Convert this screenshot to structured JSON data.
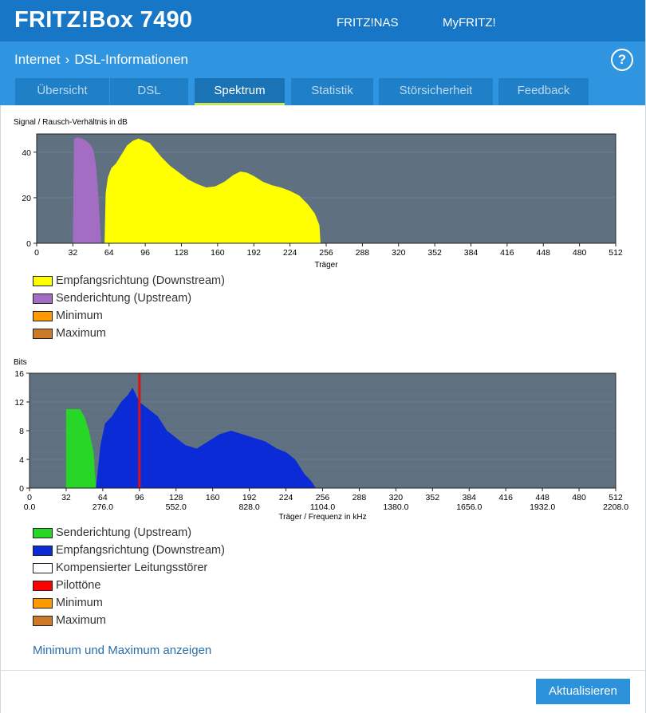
{
  "header": {
    "brand": "FRITZ!Box 7490",
    "nav": [
      "FRITZ!NAS",
      "MyFRITZ!"
    ]
  },
  "breadcrumb": {
    "parent": "Internet",
    "separator": "›",
    "current": "DSL-Informationen"
  },
  "help_label": "?",
  "tabs": [
    "Übersicht",
    "DSL",
    "Spektrum",
    "Statistik",
    "Störsicherheit",
    "Feedback"
  ],
  "active_tab": "Spektrum",
  "chart1": {
    "ylabel": "Signal / Rausch-Verhältnis in dB",
    "xlabel": "Träger"
  },
  "legend1": [
    {
      "label": "Empfangsrichtung (Downstream)",
      "color": "#ffff00"
    },
    {
      "label": "Senderichtung (Upstream)",
      "color": "#a46dc4"
    },
    {
      "label": "Minimum",
      "color": "#ff9900"
    },
    {
      "label": "Maximum",
      "color": "#cc7a29"
    }
  ],
  "chart2": {
    "ylabel": "Bits",
    "xlabel": "Träger / Frequenz in kHz"
  },
  "legend2": [
    {
      "label": "Senderichtung (Upstream)",
      "color": "#27d627"
    },
    {
      "label": "Empfangsrichtung (Downstream)",
      "color": "#0b2bd6"
    },
    {
      "label": "Kompensierter Leitungsstörer",
      "color": "#ffffff"
    },
    {
      "label": "Pilottöne",
      "color": "#ff0000"
    },
    {
      "label": "Minimum",
      "color": "#ff9900"
    },
    {
      "label": "Maximum",
      "color": "#cc7a29"
    }
  ],
  "link_label": "Minimum und Maximum anzeigen",
  "button_label": "Aktualisieren",
  "chart_data": [
    {
      "type": "area",
      "ylabel": "Signal / Rausch-Verhältnis in dB",
      "xlabel": "Träger",
      "xlim": [
        0,
        512
      ],
      "ylim": [
        0,
        48
      ],
      "xticks": [
        0,
        32,
        64,
        96,
        128,
        160,
        192,
        224,
        256,
        288,
        320,
        352,
        384,
        416,
        448,
        480,
        512
      ],
      "yticks": [
        0,
        20,
        40
      ],
      "series": [
        {
          "name": "Senderichtung (Upstream)",
          "color": "#a46dc4",
          "points": [
            [
              32,
              0
            ],
            [
              33,
              46
            ],
            [
              36,
              46.5
            ],
            [
              40,
              46
            ],
            [
              44,
              45
            ],
            [
              48,
              43
            ],
            [
              50,
              41
            ],
            [
              52,
              36
            ],
            [
              54,
              25
            ],
            [
              57,
              0
            ]
          ]
        },
        {
          "name": "Empfangsrichtung (Downstream)",
          "color": "#ffff00",
          "points": [
            [
              60,
              0
            ],
            [
              61,
              22
            ],
            [
              63,
              29
            ],
            [
              66,
              33
            ],
            [
              70,
              35
            ],
            [
              75,
              39
            ],
            [
              80,
              43
            ],
            [
              85,
              45
            ],
            [
              90,
              46
            ],
            [
              95,
              45
            ],
            [
              100,
              44
            ],
            [
              105,
              41
            ],
            [
              110,
              38
            ],
            [
              118,
              34
            ],
            [
              126,
              31
            ],
            [
              134,
              28
            ],
            [
              142,
              26
            ],
            [
              150,
              24.5
            ],
            [
              158,
              25
            ],
            [
              166,
              27
            ],
            [
              174,
              30
            ],
            [
              180,
              31.5
            ],
            [
              186,
              31
            ],
            [
              192,
              29.5
            ],
            [
              200,
              27
            ],
            [
              208,
              25.5
            ],
            [
              216,
              24.5
            ],
            [
              224,
              23
            ],
            [
              232,
              21
            ],
            [
              240,
              17
            ],
            [
              246,
              13
            ],
            [
              250,
              8
            ],
            [
              251,
              0
            ]
          ]
        }
      ]
    },
    {
      "type": "area",
      "ylabel": "Bits",
      "xlabel": "Träger / Frequenz in kHz",
      "xlim": [
        0,
        512
      ],
      "ylim": [
        0,
        16
      ],
      "xticks": [
        0,
        32,
        64,
        96,
        128,
        160,
        192,
        224,
        256,
        288,
        320,
        352,
        384,
        416,
        448,
        480,
        512
      ],
      "freq_ticks": [
        "0.0",
        "276.0",
        "552.0",
        "828.0",
        "1104.0",
        "1380.0",
        "1656.0",
        "1932.0",
        "2208.0"
      ],
      "yticks": [
        0,
        4,
        8,
        12,
        16
      ],
      "series": [
        {
          "name": "Senderichtung (Upstream)",
          "color": "#27d627",
          "points": [
            [
              32,
              0
            ],
            [
              32,
              11
            ],
            [
              44,
              11
            ],
            [
              48,
              10
            ],
            [
              52,
              8
            ],
            [
              56,
              5
            ],
            [
              58,
              0
            ]
          ]
        },
        {
          "name": "Empfangsrichtung (Downstream)",
          "color": "#0b2bd6",
          "points": [
            [
              58,
              0
            ],
            [
              60,
              3
            ],
            [
              62,
              6
            ],
            [
              66,
              9
            ],
            [
              72,
              10
            ],
            [
              80,
              12
            ],
            [
              86,
              13
            ],
            [
              90,
              14
            ],
            [
              96,
              12
            ],
            [
              104,
              11
            ],
            [
              112,
              10
            ],
            [
              120,
              8
            ],
            [
              128,
              7
            ],
            [
              136,
              6
            ],
            [
              146,
              5.5
            ],
            [
              156,
              6.5
            ],
            [
              166,
              7.5
            ],
            [
              176,
              8
            ],
            [
              186,
              7.5
            ],
            [
              196,
              7
            ],
            [
              206,
              6.5
            ],
            [
              216,
              5.5
            ],
            [
              224,
              5
            ],
            [
              232,
              4
            ],
            [
              240,
              2
            ],
            [
              246,
              1
            ],
            [
              250,
              0
            ]
          ]
        }
      ],
      "pilot_tone_carrier": 96
    }
  ]
}
